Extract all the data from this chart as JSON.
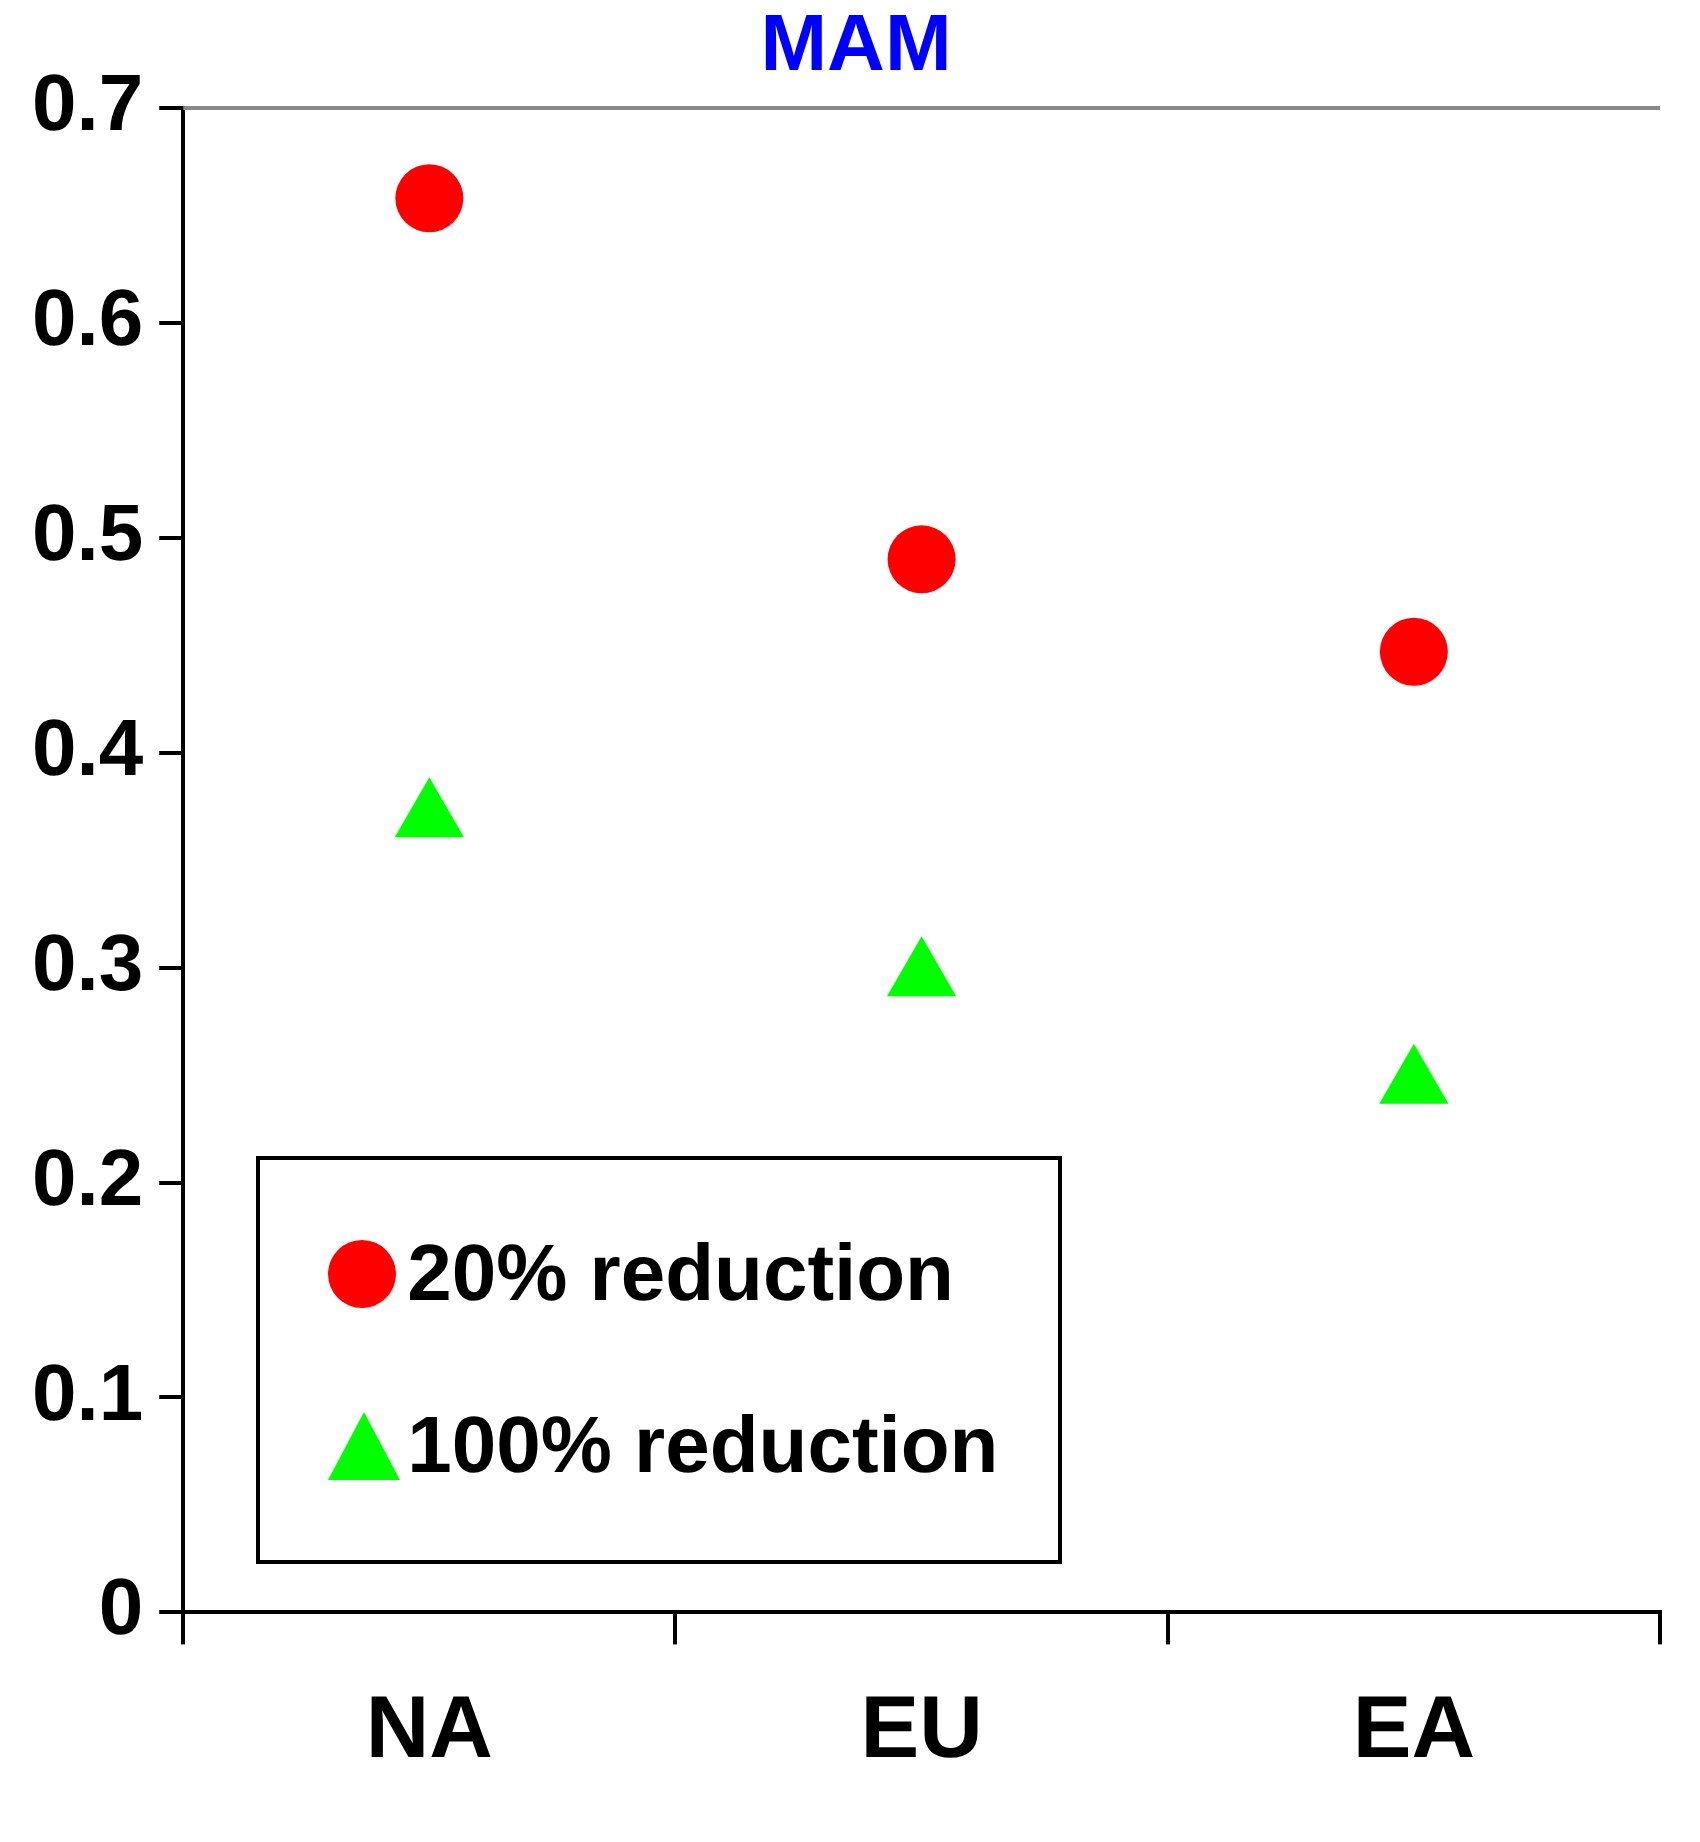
{
  "chart_data": {
    "type": "scatter",
    "title": "MAM",
    "categories": [
      "NA",
      "EU",
      "EA"
    ],
    "series": [
      {
        "name": "20% reduction",
        "color": "#ff0000",
        "marker": "circle",
        "values": [
          0.658,
          0.49,
          0.447
        ]
      },
      {
        "name": "100% reduction",
        "color": "#00ff00",
        "marker": "triangle",
        "values": [
          0.37,
          0.296,
          0.246
        ]
      }
    ],
    "ylim": [
      0,
      0.7
    ],
    "yticks": [
      0,
      0.1,
      0.2,
      0.3,
      0.4,
      0.5,
      0.6,
      0.7
    ],
    "grid": false,
    "legend": "bottom left"
  }
}
